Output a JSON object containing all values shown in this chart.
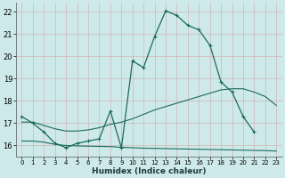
{
  "title": "",
  "xlabel": "Humidex (Indice chaleur)",
  "ylabel": "",
  "bg_color": "#cee9e9",
  "grid_color": "#c0d8d8",
  "line_color": "#1a6b5a",
  "xlim": [
    -0.5,
    23.5
  ],
  "ylim": [
    15.5,
    22.4
  ],
  "x_ticks": [
    0,
    1,
    2,
    3,
    4,
    5,
    6,
    7,
    8,
    9,
    10,
    11,
    12,
    13,
    14,
    15,
    16,
    17,
    18,
    19,
    20,
    21,
    22,
    23
  ],
  "y_ticks": [
    16,
    17,
    18,
    19,
    20,
    21,
    22
  ],
  "curve1_x": [
    0,
    1,
    2,
    3,
    4,
    5,
    6,
    7,
    8,
    9,
    10,
    11,
    12,
    13,
    14,
    15,
    16,
    17,
    18,
    19,
    20,
    21
  ],
  "curve1_y": [
    17.3,
    17.0,
    16.6,
    16.1,
    15.9,
    16.1,
    16.2,
    16.3,
    17.55,
    15.9,
    19.8,
    19.5,
    20.9,
    22.05,
    21.85,
    21.4,
    21.2,
    20.5,
    18.85,
    18.4,
    17.3,
    16.6
  ],
  "curve2_x": [
    0,
    1,
    2,
    3,
    4,
    5,
    6,
    7,
    8,
    9,
    10,
    11,
    12,
    13,
    14,
    15,
    16,
    17,
    18,
    19,
    20,
    21,
    22,
    23
  ],
  "curve2_y": [
    17.05,
    17.05,
    16.9,
    16.75,
    16.65,
    16.65,
    16.7,
    16.8,
    16.95,
    17.05,
    17.2,
    17.4,
    17.6,
    17.75,
    17.9,
    18.05,
    18.2,
    18.35,
    18.5,
    18.55,
    18.55,
    18.4,
    18.2,
    17.8
  ],
  "curve3_x": [
    0,
    1,
    2,
    3,
    4,
    5,
    6,
    7,
    8,
    9,
    10,
    11,
    12,
    13,
    14,
    15,
    16,
    17,
    18,
    19,
    20,
    21,
    22,
    23
  ],
  "curve3_y": [
    16.2,
    16.2,
    16.15,
    16.05,
    16.0,
    15.98,
    15.97,
    15.96,
    15.95,
    15.92,
    15.9,
    15.88,
    15.87,
    15.86,
    15.85,
    15.84,
    15.83,
    15.82,
    15.81,
    15.8,
    15.79,
    15.78,
    15.77,
    15.75
  ]
}
